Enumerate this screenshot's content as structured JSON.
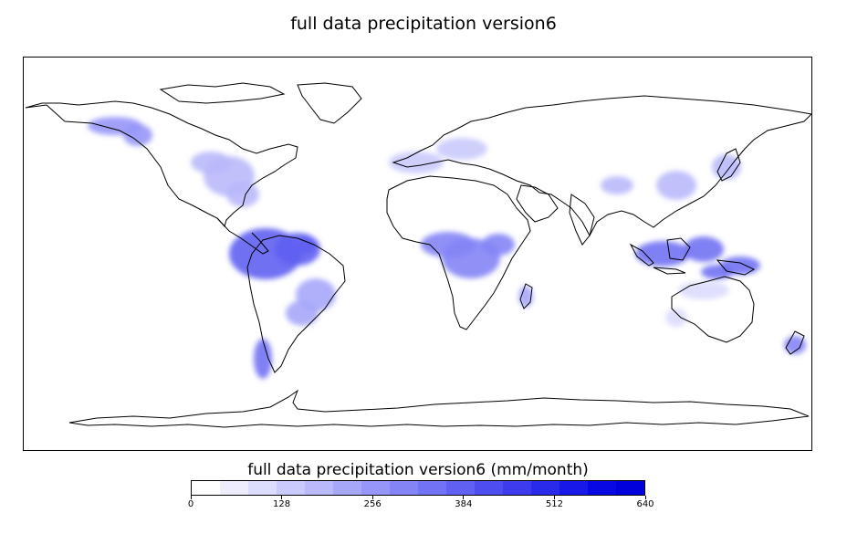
{
  "title": "full data precipitation version6",
  "colorbar": {
    "title": "full data precipitation version6 (mm/month)",
    "tick_labels": [
      "0",
      "128",
      "256",
      "384",
      "512",
      "640"
    ],
    "tick_values": [
      0,
      128,
      256,
      384,
      512,
      640
    ],
    "range": [
      0,
      640
    ],
    "colors": [
      "#ffffff",
      "#ededfe",
      "#dcdcfd",
      "#cacafc",
      "#b9b9fb",
      "#a7a7fa",
      "#9696f8",
      "#8484f6",
      "#7272f4",
      "#6060f2",
      "#4e4ef0",
      "#3c3cee",
      "#2a2aeb",
      "#1818e8",
      "#0808e4",
      "#0000dc"
    ]
  },
  "chart_data": {
    "type": "heatmap",
    "title": "full data precipitation version6",
    "units": "mm/month",
    "color_range": [
      0,
      640
    ],
    "regions": [
      {
        "name": "Amazon basin",
        "value": 400
      },
      {
        "name": "Indonesian archipelago",
        "value": 340
      },
      {
        "name": "Central Africa (Congo)",
        "value": 300
      },
      {
        "name": "Eastern North America",
        "value": 160
      },
      {
        "name": "Southern Chile",
        "value": 320
      },
      {
        "name": "Western Europe",
        "value": 110
      },
      {
        "name": "East China / Japan",
        "value": 180
      },
      {
        "name": "New Zealand",
        "value": 300
      },
      {
        "name": "Madagascar",
        "value": 220
      },
      {
        "name": "Pacific NW North America",
        "value": 240
      },
      {
        "name": "Southeast Brazil",
        "value": 200
      },
      {
        "name": "Northern Australia",
        "value": 90
      }
    ]
  }
}
